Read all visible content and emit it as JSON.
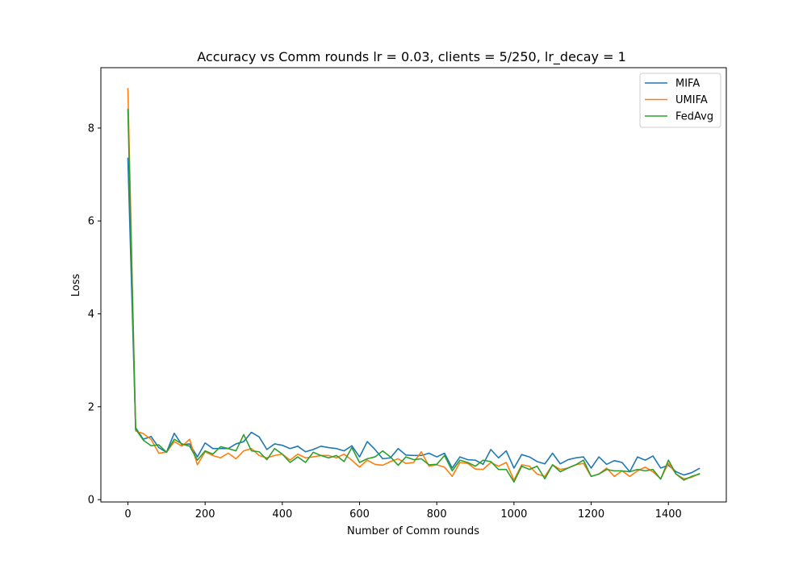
{
  "chart_data": {
    "type": "line",
    "title": "Accuracy vs Comm rounds lr = 0.03, clients = 5/250, lr_decay = 1",
    "xlabel": "Number of Comm rounds",
    "ylabel": "Loss",
    "xlim": [
      -70,
      1550
    ],
    "ylim": [
      -0.05,
      9.3
    ],
    "xticks": [
      0,
      200,
      400,
      600,
      800,
      1000,
      1200,
      1400
    ],
    "yticks": [
      0,
      2,
      4,
      6,
      8
    ],
    "grid": false,
    "legend_position": "top-right",
    "x": [
      0,
      20,
      40,
      60,
      80,
      100,
      120,
      140,
      160,
      180,
      200,
      220,
      240,
      260,
      280,
      300,
      320,
      340,
      360,
      380,
      400,
      420,
      440,
      460,
      480,
      500,
      520,
      540,
      560,
      580,
      600,
      620,
      640,
      660,
      680,
      700,
      720,
      740,
      760,
      780,
      800,
      820,
      840,
      860,
      880,
      900,
      920,
      940,
      960,
      980,
      1000,
      1020,
      1040,
      1060,
      1080,
      1100,
      1120,
      1140,
      1160,
      1180,
      1200,
      1220,
      1240,
      1260,
      1280,
      1300,
      1320,
      1340,
      1360,
      1380,
      1400,
      1420,
      1440,
      1460,
      1480
    ],
    "series": [
      {
        "name": "MIFA",
        "color": "#1f77b4",
        "values": [
          7.35,
          1.55,
          1.3,
          1.36,
          1.12,
          1.02,
          1.43,
          1.18,
          1.2,
          0.92,
          1.22,
          1.1,
          1.1,
          1.1,
          1.2,
          1.25,
          1.45,
          1.35,
          1.08,
          1.2,
          1.17,
          1.1,
          1.15,
          1.03,
          1.08,
          1.15,
          1.12,
          1.1,
          1.05,
          1.16,
          0.92,
          1.25,
          1.08,
          0.88,
          0.9,
          1.1,
          0.96,
          0.95,
          0.95,
          1.0,
          0.92,
          1.0,
          0.68,
          0.92,
          0.86,
          0.85,
          0.76,
          1.08,
          0.9,
          1.05,
          0.68,
          0.97,
          0.92,
          0.82,
          0.77,
          1.0,
          0.77,
          0.86,
          0.9,
          0.92,
          0.68,
          0.92,
          0.76,
          0.84,
          0.8,
          0.6,
          0.92,
          0.85,
          0.94,
          0.68,
          0.74,
          0.6,
          0.53,
          0.58,
          0.67
        ]
      },
      {
        "name": "UMIFA",
        "color": "#ff7f0e",
        "values": [
          8.85,
          1.48,
          1.42,
          1.3,
          1.0,
          1.02,
          1.25,
          1.15,
          1.3,
          0.75,
          1.03,
          0.95,
          0.9,
          1.0,
          0.88,
          1.05,
          1.1,
          0.95,
          0.9,
          0.95,
          0.98,
          0.85,
          0.98,
          0.9,
          0.92,
          0.95,
          0.95,
          0.9,
          0.98,
          0.85,
          0.7,
          0.85,
          0.76,
          0.74,
          0.82,
          0.88,
          0.78,
          0.8,
          1.03,
          0.72,
          0.75,
          0.7,
          0.5,
          0.8,
          0.78,
          0.66,
          0.65,
          0.8,
          0.72,
          0.8,
          0.42,
          0.75,
          0.72,
          0.55,
          0.5,
          0.75,
          0.65,
          0.68,
          0.75,
          0.78,
          0.5,
          0.55,
          0.68,
          0.5,
          0.62,
          0.5,
          0.62,
          0.7,
          0.6,
          0.45,
          0.78,
          0.55,
          0.45,
          0.48,
          0.56
        ]
      },
      {
        "name": "FedAvg",
        "color": "#2ca02c",
        "values": [
          8.4,
          1.52,
          1.28,
          1.16,
          1.18,
          1.02,
          1.3,
          1.2,
          1.15,
          0.85,
          1.05,
          0.98,
          1.14,
          1.1,
          1.05,
          1.4,
          1.05,
          1.03,
          0.86,
          1.1,
          0.98,
          0.8,
          0.92,
          0.8,
          1.02,
          0.95,
          0.9,
          0.95,
          0.82,
          1.12,
          0.8,
          0.88,
          0.92,
          1.05,
          0.92,
          0.74,
          0.92,
          0.86,
          0.88,
          0.75,
          0.76,
          0.95,
          0.62,
          0.85,
          0.8,
          0.72,
          0.85,
          0.82,
          0.65,
          0.65,
          0.38,
          0.72,
          0.65,
          0.72,
          0.45,
          0.75,
          0.6,
          0.68,
          0.75,
          0.85,
          0.5,
          0.55,
          0.65,
          0.62,
          0.62,
          0.6,
          0.65,
          0.62,
          0.65,
          0.44,
          0.85,
          0.55,
          0.42,
          0.5,
          0.55
        ]
      }
    ]
  }
}
